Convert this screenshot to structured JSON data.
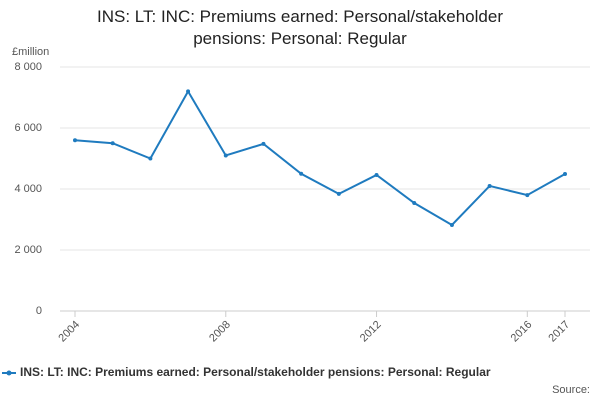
{
  "chart_data": {
    "type": "line",
    "title": "INS: LT: INC: Premiums earned: Personal/stakeholder pensions: Personal: Regular",
    "y_label": "£million",
    "source": "Source:",
    "x": [
      2004,
      2005,
      2006,
      2007,
      2008,
      2009,
      2010,
      2011,
      2012,
      2013,
      2014,
      2015,
      2016,
      2017
    ],
    "xlim": [
      2004,
      2017
    ],
    "xticks": [
      2004,
      2008,
      2012,
      2016,
      2017
    ],
    "ylim": [
      0,
      8000
    ],
    "yticks": [
      0,
      {
        "value": 2000,
        "label": "2 000"
      },
      {
        "value": 4000,
        "label": "4 000"
      },
      {
        "value": 6000,
        "label": "6 000"
      },
      {
        "value": 8000,
        "label": "8 000"
      }
    ],
    "grid": true,
    "legend": "bottom",
    "series": [
      {
        "name": "INS: LT: INC: Premiums earned: Personal/stakeholder pensions: Personal: Regular",
        "color": "#1f7bbf",
        "values": [
          5600,
          5500,
          5000,
          7200,
          5100,
          5480,
          4500,
          3840,
          4460,
          3540,
          2820,
          4100,
          3800,
          4490
        ]
      }
    ]
  }
}
